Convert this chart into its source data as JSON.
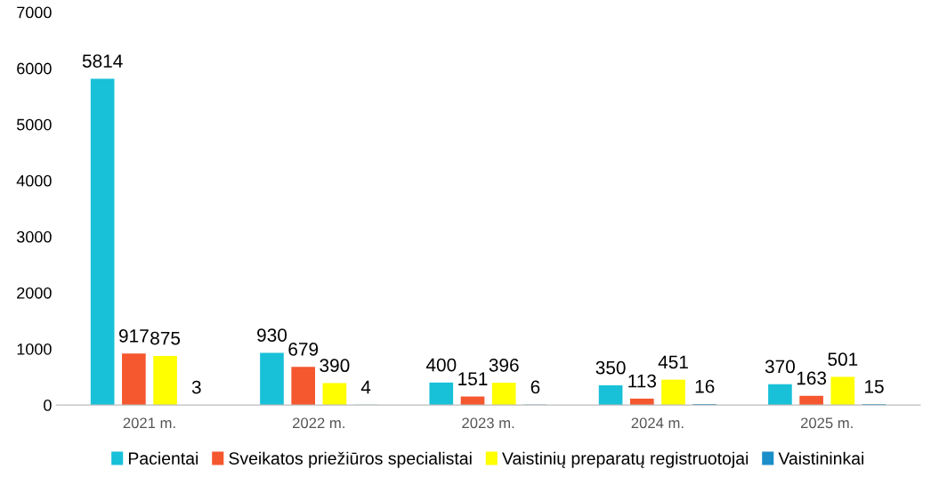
{
  "chart_data": {
    "type": "bar",
    "categories": [
      "2021 m.",
      "2022 m.",
      "2023 m.",
      "2024 m.",
      "2025 m."
    ],
    "series": [
      {
        "name": "Pacientai",
        "color": "#18c0d8",
        "values": [
          5814,
          930,
          400,
          350,
          370
        ]
      },
      {
        "name": "Sveikatos priežiūros specialistai",
        "color": "#f5572e",
        "values": [
          917,
          679,
          151,
          113,
          163
        ]
      },
      {
        "name": "Vaistinių preparatų registruotojai",
        "color": "#ffff00",
        "values": [
          875,
          390,
          396,
          451,
          501
        ]
      },
      {
        "name": "Vaistininkai",
        "color": "#1a8ec8",
        "values": [
          3,
          4,
          6,
          16,
          15
        ]
      }
    ],
    "ylim": [
      0,
      7000
    ],
    "yticks": [
      0,
      1000,
      2000,
      3000,
      4000,
      5000,
      6000,
      7000
    ],
    "grid": false,
    "legend": "bottom",
    "data_labels": true
  }
}
